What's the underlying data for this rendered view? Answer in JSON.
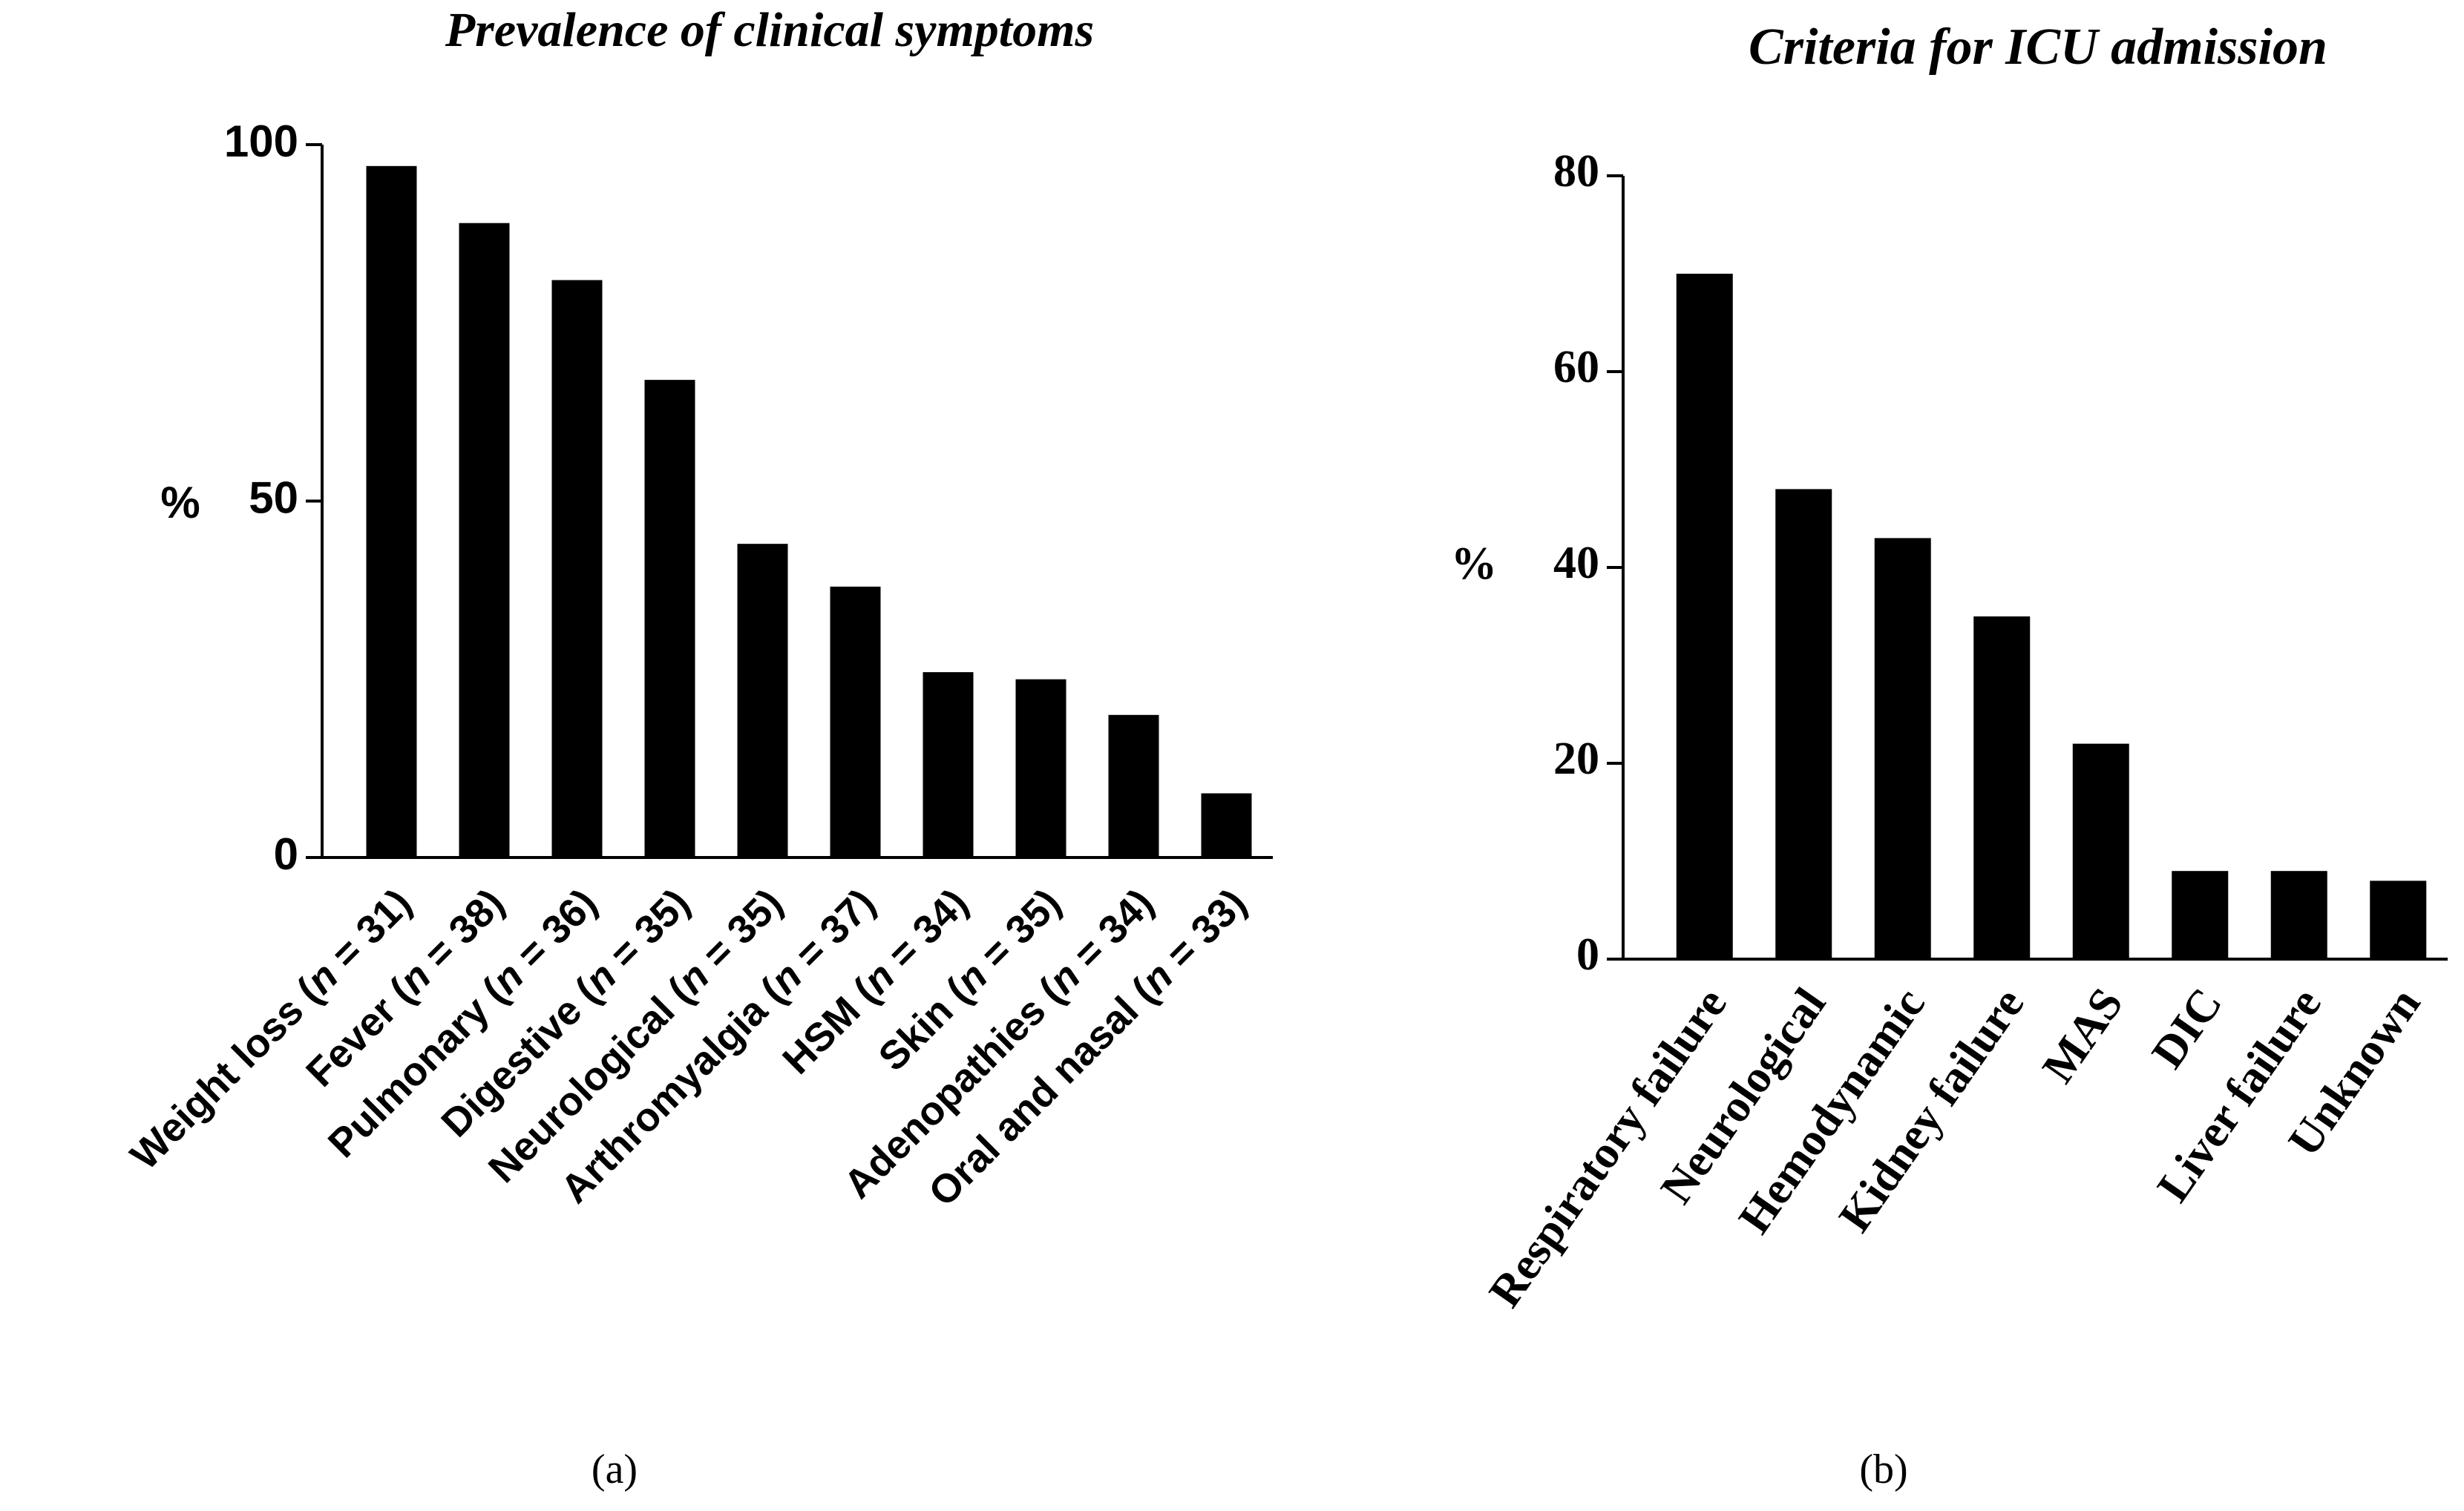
{
  "chart_data": [
    {
      "type": "bar",
      "title": "Prevalence of clinical symptoms",
      "ylabel": "%",
      "caption": "(a)",
      "categories": [
        "Weight loss (n = 31)",
        "Fever (n = 38)",
        "Pulmonary (n = 36)",
        "Digestive (n = 35)",
        "Neurological (n = 35)",
        "Arthromyalgia (n = 37)",
        "HSM (n = 34)",
        "Skin (n = 35)",
        "Adenopathies (n = 34)",
        "Oral and nasal (n = 33)"
      ],
      "values": [
        97,
        89,
        81,
        67,
        44,
        38,
        26,
        25,
        20,
        9
      ],
      "color": "#000000",
      "ylim": [
        0,
        100
      ],
      "yticks": [
        0,
        50,
        100
      ],
      "grid": false
    },
    {
      "type": "bar",
      "title": "Criteria for ICU admission",
      "ylabel": "%",
      "caption": "(b)",
      "categories": [
        "Respiratory failure",
        "Neurological",
        "Hemodynamic",
        "Kidney failure",
        "MAS",
        "DIC",
        "Liver failure",
        "Unknown"
      ],
      "values": [
        70,
        48,
        43,
        35,
        22,
        9,
        9,
        8
      ],
      "color": "#000000",
      "ylim": [
        0,
        80
      ],
      "yticks": [
        0,
        20,
        40,
        60,
        80
      ],
      "grid": false
    }
  ]
}
